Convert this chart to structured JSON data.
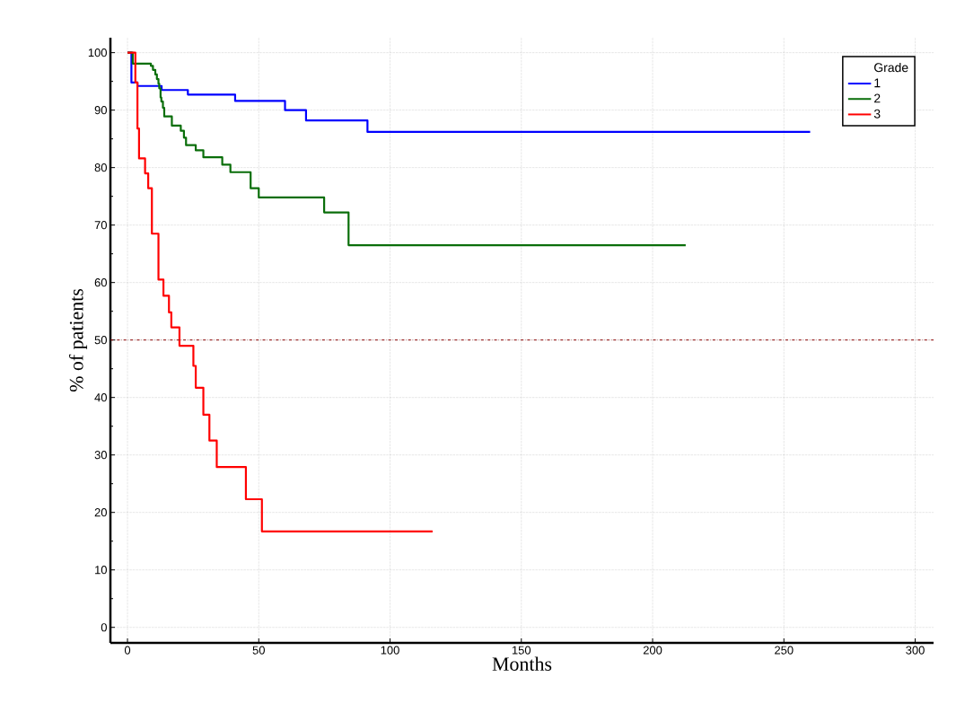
{
  "chart_data": {
    "type": "step",
    "xlabel": "Months",
    "ylabel": "% of patients",
    "legend_title": "Grade",
    "xlim": [
      -6.5,
      307
    ],
    "ylim": [
      -2.7,
      102.6
    ],
    "xticks": [
      0,
      50,
      100,
      150,
      200,
      250,
      300
    ],
    "yticks": [
      0,
      10,
      20,
      30,
      40,
      50,
      60,
      70,
      80,
      90,
      100
    ],
    "grid": true,
    "legend": "top right",
    "ref_lines": [
      {
        "axis": "y",
        "value": 50,
        "color": "#8b0000",
        "line_style": "dashdot"
      }
    ],
    "series": [
      {
        "name": "1",
        "color": "#0000ff",
        "x": [
          0,
          1.5,
          3.8,
          13,
          23,
          41,
          60,
          68,
          91.4,
          260
        ],
        "values": [
          100,
          94.8,
          94.2,
          93.5,
          92.7,
          91.6,
          90,
          88.2,
          86.2,
          86.2
        ]
      },
      {
        "name": "2",
        "color": "#0a6e0a",
        "x": [
          0,
          2,
          8.9,
          9.7,
          10.6,
          11.2,
          11.8,
          12.1,
          12.6,
          12.9,
          13.5,
          14,
          16.9,
          20.3,
          21.5,
          22.3,
          26,
          28.9,
          36.1,
          39.2,
          46.9,
          50,
          74.9,
          84.2,
          212.6
        ],
        "values": [
          100,
          98.1,
          97.7,
          97,
          96.2,
          95.4,
          94.6,
          93.8,
          92.2,
          91.5,
          90.4,
          88.9,
          87.3,
          86.4,
          85.2,
          83.9,
          83,
          81.8,
          80.5,
          79.2,
          76.4,
          74.8,
          72.2,
          66.5,
          66.5
        ]
      },
      {
        "name": "3",
        "color": "#ff0000",
        "x": [
          0,
          3,
          3.8,
          4.4,
          6.7,
          7.9,
          9.3,
          11.8,
          13.7,
          15.8,
          16.7,
          19.8,
          25.1,
          26,
          28.9,
          31.2,
          34,
          45.1,
          51.2,
          116.2
        ],
        "values": [
          100,
          94.8,
          86.8,
          81.6,
          79,
          76.4,
          68.5,
          60.5,
          57.7,
          54.8,
          52.2,
          49,
          45.5,
          41.7,
          37,
          32.5,
          27.9,
          22.3,
          16.7,
          16.7
        ]
      }
    ]
  }
}
